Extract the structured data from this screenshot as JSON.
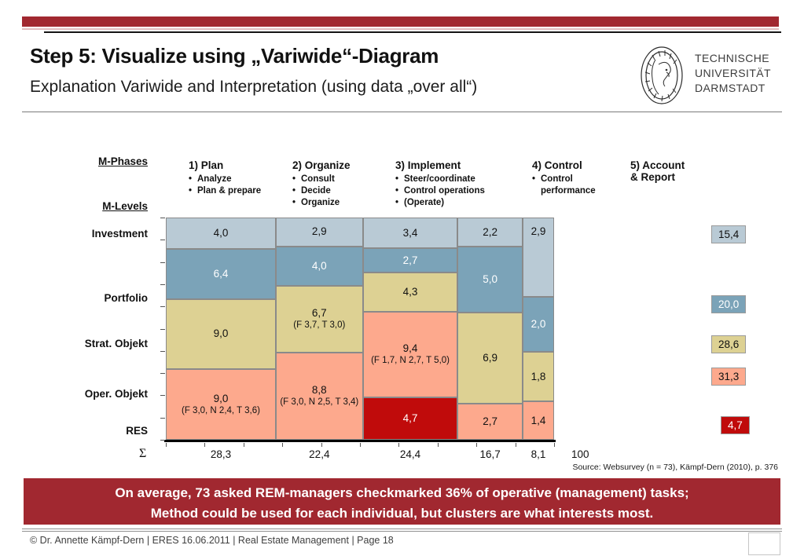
{
  "slide": {
    "title": "Step 5: Visualize using „Variwide“-Diagram",
    "subtitle": "Explanation Variwide and Interpretation (using data „over all“)",
    "logo": {
      "line1": "TECHNISCHE",
      "line2": "UNIVERSITÄT",
      "line3": "DARMSTADT"
    },
    "banner": {
      "line1": "On average, 73 asked REM-managers checkmarked 36% of operative (management) tasks;",
      "line2": "Method could be used for each individual, but clusters are what interests most."
    },
    "source": "Source: Websurvey (n = 73), Kämpf-Dern (2010), p. 376",
    "footer": "© Dr. Annette Kämpf-Dern | ERES 16.06.2011 | Real Estate Management | Page 18"
  },
  "chart_data": {
    "type": "variwide-marimekko",
    "phases_label": "M-Phases",
    "levels_label": "M-Levels",
    "row_labels": [
      "Investment",
      "Portfolio",
      "Strat. Objekt",
      "Oper. Objekt",
      "RES"
    ],
    "columns": [
      {
        "header": "1) Plan",
        "bullets": [
          "Analyze",
          "Plan & prepare"
        ],
        "sum_label": "28,3",
        "sum_value": 28.3,
        "segments": [
          {
            "label": "4,0",
            "v": 4.0,
            "color": "lightblue"
          },
          {
            "label": "6,4",
            "v": 6.4,
            "color": "darkblue"
          },
          {
            "label": "9,0",
            "v": 9.0,
            "color": "tan"
          },
          {
            "label": "9,0",
            "v": 9.0,
            "color": "salmon",
            "sub": "(F 3,0, N 2,4, T 3,6)"
          }
        ]
      },
      {
        "header": "2) Organize",
        "bullets": [
          "Consult",
          "Decide",
          "Organize"
        ],
        "sum_label": "22,4",
        "sum_value": 22.4,
        "segments": [
          {
            "label": "2,9",
            "v": 2.9,
            "color": "lightblue"
          },
          {
            "label": "4,0",
            "v": 4.0,
            "color": "darkblue"
          },
          {
            "label": "6,7",
            "v": 6.7,
            "color": "tan",
            "sub": "(F 3,7, T 3,0)"
          },
          {
            "label": "8,8",
            "v": 8.8,
            "color": "salmon",
            "sub": "(F 3,0, N 2,5, T 3,4)"
          }
        ]
      },
      {
        "header": "3) Implement",
        "bullets": [
          "Steer/coordinate",
          "Control operations",
          "(Operate)"
        ],
        "sum_label": "24,4",
        "sum_value": 24.4,
        "segments": [
          {
            "label": "3,4",
            "v": 3.4,
            "color": "lightblue"
          },
          {
            "label": "2,7",
            "v": 2.7,
            "color": "darkblue"
          },
          {
            "label": "4,3",
            "v": 4.3,
            "color": "tan"
          },
          {
            "label": "9,4",
            "v": 9.4,
            "color": "salmon",
            "sub": "(F 1,7, N 2,7, T 5,0)"
          },
          {
            "label": "4,7",
            "v": 4.7,
            "color": "darkred"
          }
        ]
      },
      {
        "header": "4) Control",
        "bullets": [
          "Control\nperformance"
        ],
        "sum_label": "16,7",
        "sum_value": 16.7,
        "segments": [
          {
            "label": "2,2",
            "v": 2.2,
            "color": "lightblue"
          },
          {
            "label": "5,0",
            "v": 5.0,
            "color": "darkblue"
          },
          {
            "label": "6,9",
            "v": 6.9,
            "color": "tan"
          },
          {
            "label": "2,7",
            "v": 2.7,
            "color": "salmon"
          }
        ]
      },
      {
        "header": "5) Account\n& Report",
        "bullets": [],
        "sum_label": "8,1",
        "sum_value": 8.1,
        "segments": [
          {
            "label": "2,9",
            "v": 2.9,
            "color": "lightblue",
            "valign": "top"
          },
          {
            "label": "2,0",
            "v": 2.0,
            "color": "darkblue"
          },
          {
            "label": "1,8",
            "v": 1.8,
            "color": "tan"
          },
          {
            "label": "1,4",
            "v": 1.4,
            "color": "salmon"
          }
        ]
      }
    ],
    "row_totals": [
      {
        "label": "15,4",
        "color": "lightblue"
      },
      {
        "label": "20,0",
        "color": "darkblue"
      },
      {
        "label": "28,6",
        "color": "tan"
      },
      {
        "label": "31,3",
        "color": "salmon"
      },
      {
        "label": "4,7",
        "color": "darkred"
      }
    ],
    "sum_symbol": "Σ",
    "grand_total": "100",
    "legend_position": "none",
    "colors": {
      "accent": "#a12830",
      "lightblue": "#b9cad5",
      "darkblue": "#7ba3b8",
      "tan": "#ddd193",
      "salmon": "#fda98d",
      "darkred": "#c00b0b"
    }
  }
}
